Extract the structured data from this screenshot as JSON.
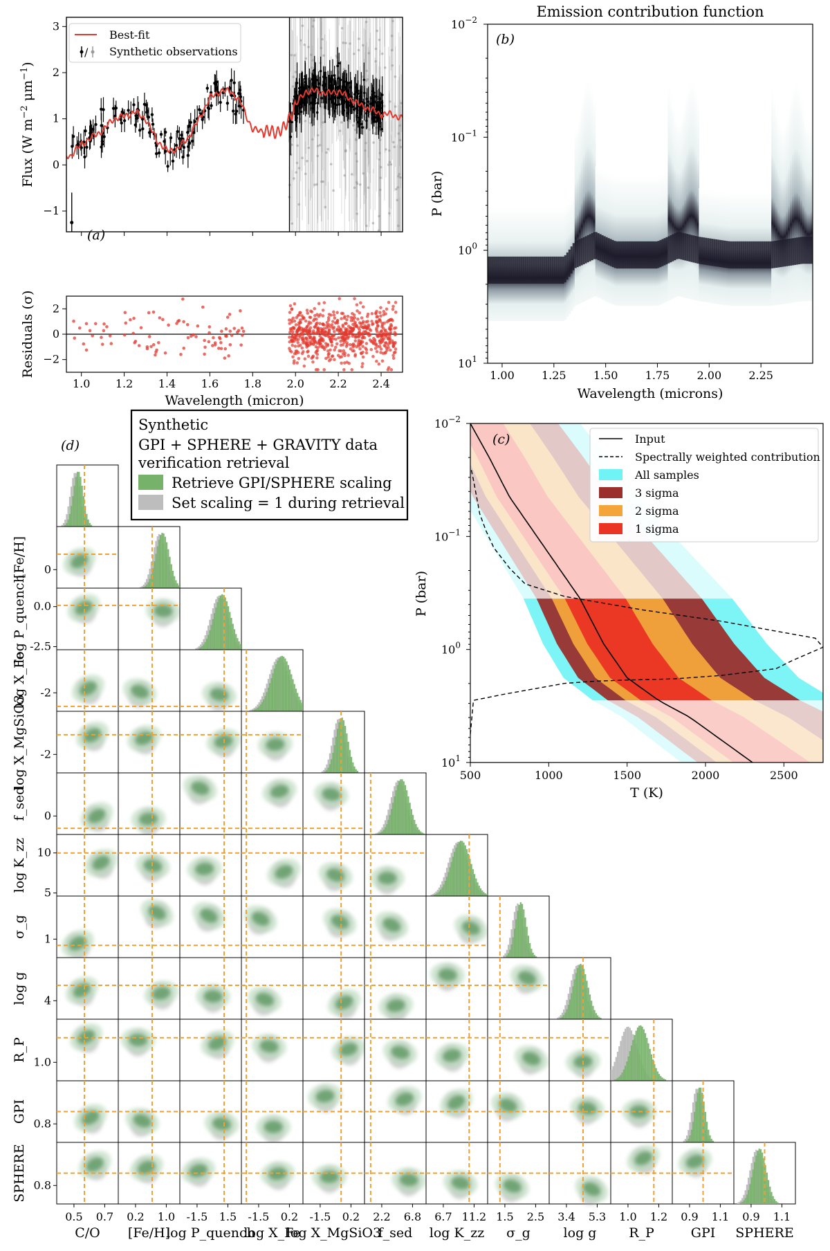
{
  "chart_data": [
    {
      "id": "a",
      "panel_label": "(a)",
      "type": "line+errorbar",
      "ylabel": "Flux (W m^-2 μm^-1)",
      "ylabel_parts": [
        "Flux (W m",
        "−2",
        " μm",
        "−1",
        ")"
      ],
      "xlim": [
        0.93,
        2.5
      ],
      "ylim": [
        -1.45,
        3.2
      ],
      "xticks": [
        1.0,
        1.2,
        1.4,
        1.6,
        1.8,
        2.0,
        2.2,
        2.4
      ],
      "xtick_labels": [
        "1.0",
        "1.2",
        "1.4",
        "1.6",
        "1.8",
        "2.0",
        "2.2",
        "2.4"
      ],
      "yticks": [
        -1,
        0,
        1,
        2,
        3
      ],
      "ytick_labels": [
        "−1",
        "0",
        "1",
        "2",
        "3"
      ],
      "legend": [
        "Best-fit",
        "Synthetic observations"
      ],
      "legend_marker_text": "/",
      "series": [
        {
          "name": "Best-fit",
          "color": "#e23a2f",
          "x": [
            0.95,
            1.0,
            1.05,
            1.1,
            1.15,
            1.2,
            1.25,
            1.3,
            1.35,
            1.4,
            1.45,
            1.5,
            1.55,
            1.6,
            1.65,
            1.7,
            1.75,
            1.8,
            1.85,
            1.9,
            1.95,
            2.0,
            2.05,
            2.1,
            2.15,
            2.2,
            2.25,
            2.3,
            2.35,
            2.4,
            2.45,
            2.5
          ],
          "y": [
            0.2,
            0.45,
            0.6,
            0.75,
            1.0,
            1.05,
            1.15,
            1.0,
            0.55,
            0.3,
            0.35,
            0.6,
            1.0,
            1.45,
            1.6,
            1.6,
            1.3,
            0.75,
            0.75,
            0.7,
            0.8,
            1.3,
            1.6,
            1.6,
            1.55,
            1.6,
            1.45,
            1.3,
            1.2,
            1.1,
            1.1,
            1.0
          ]
        }
      ]
    },
    {
      "id": "a-res",
      "type": "scatter",
      "ylabel": "Residuals (σ)",
      "xlabel": "Wavelength (micron)",
      "xlim": [
        0.93,
        2.5
      ],
      "ylim": [
        -3,
        3
      ],
      "xticks": [
        1.0,
        1.2,
        1.4,
        1.6,
        1.8,
        2.0,
        2.2,
        2.4
      ],
      "xtick_labels": [
        "1.0",
        "1.2",
        "1.4",
        "1.6",
        "1.8",
        "2.0",
        "2.2",
        "2.4"
      ],
      "yticks": [
        -2,
        0,
        2
      ],
      "ytick_labels": [
        "−2",
        "0",
        "2"
      ],
      "color": "#e23a2f"
    },
    {
      "id": "b",
      "panel_label": "(b)",
      "type": "heatmap",
      "title": "Emission contribution function",
      "xlabel": "Wavelength (microns)",
      "ylabel": "P (bar)",
      "xlim": [
        0.93,
        2.5
      ],
      "ylim_log10": [
        -2,
        1
      ],
      "xticks": [
        1.0,
        1.25,
        1.5,
        1.75,
        2.0,
        2.25
      ],
      "xtick_labels": [
        "1.00",
        "1.25",
        "1.50",
        "1.75",
        "2.00",
        "2.25"
      ],
      "ytick_base": "10",
      "yticks_exp": [
        "−2",
        "−1",
        "0",
        "1"
      ],
      "peak_pressure_bar": {
        "x": [
          0.93,
          1.0,
          1.3,
          1.35,
          1.45,
          1.55,
          1.75,
          1.85,
          1.95,
          2.1,
          2.2,
          2.3,
          2.45,
          2.5
        ],
        "y": [
          1.5,
          1.5,
          1.5,
          1.1,
          0.9,
          1.1,
          1.1,
          0.9,
          1.0,
          1.1,
          1.1,
          1.1,
          1.0,
          1.0
        ]
      }
    },
    {
      "id": "c",
      "panel_label": "(c)",
      "type": "area+line",
      "xlabel": "T (K)",
      "ylabel": "P (bar)",
      "xlim": [
        500,
        2750
      ],
      "ylim_log10": [
        -2,
        1
      ],
      "xticks": [
        500,
        1000,
        1500,
        2000,
        2500
      ],
      "xtick_labels": [
        "500",
        "1000",
        "1500",
        "2000",
        "2500"
      ],
      "ytick_base": "10",
      "yticks_exp": [
        "−2",
        "−1",
        "0",
        "1"
      ],
      "legend": [
        "Input",
        "Spectrally weighted contribution",
        "All samples",
        "3 sigma",
        "2 sigma",
        "1 sigma"
      ],
      "legend_colors": [
        "#000000",
        "#000000",
        "#6ff3f5",
        "#9a2f2c",
        "#f3a53a",
        "#ea3323"
      ],
      "input_profile": {
        "T": [
          500,
          620,
          750,
          900,
          1050,
          1200,
          1350,
          1500,
          1700,
          1900,
          2100,
          2300
        ],
        "log10P": [
          -2,
          -1.7,
          -1.35,
          -1.05,
          -0.75,
          -0.45,
          -0.05,
          0.25,
          0.45,
          0.6,
          0.8,
          1.0
        ]
      },
      "contribution_curve": {
        "T": [
          500,
          520,
          700,
          900,
          1100,
          1300,
          1500,
          1800,
          2100,
          2450,
          2550,
          2750,
          2700,
          2500,
          2100,
          1600,
          1100,
          850,
          750,
          650,
          600,
          560,
          540,
          520,
          505
        ],
        "log10P": [
          0.75,
          0.45,
          0.4,
          0.35,
          0.3,
          0.28,
          0.27,
          0.26,
          0.23,
          0.17,
          0.1,
          -0.02,
          -0.1,
          -0.15,
          -0.25,
          -0.35,
          -0.47,
          -0.58,
          -0.72,
          -0.9,
          -1.05,
          -1.2,
          -1.35,
          -1.5,
          -1.6
        ]
      }
    },
    {
      "id": "d",
      "panel_label": "(d)",
      "type": "corner",
      "legend_title": "Synthetic",
      "legend_subtitle_lines": [
        "GPI + SPHERE + GRAVITY data",
        "verification retrieval"
      ],
      "legend": [
        "Retrieve GPI/SPHERE scaling",
        "Set scaling = 1 during retrieval"
      ],
      "legend_colors": [
        "#77b26a",
        "#bdbdbd"
      ],
      "truth_color": "#f0a030",
      "parameters": [
        {
          "name": "C/O",
          "xticks": [
            "0.5",
            "0.7"
          ],
          "truth_frac": 0.45
        },
        {
          "name": "[Fe/H]",
          "xticks": [
            "0.2",
            "1.0"
          ],
          "truth_frac": 0.55,
          "yticks": [
            "0"
          ]
        },
        {
          "name": "log P_quench",
          "xticks": [
            "-1.5",
            "1.5"
          ],
          "truth_frac": 0.72,
          "yticks": [
            "0.0",
            "-2.5"
          ]
        },
        {
          "name": "log X_Fe",
          "xticks": [
            "-1.5",
            "0.2"
          ],
          "truth_frac": 0.08,
          "yticks": [
            "-2"
          ]
        },
        {
          "name": "log X_MgSiO3",
          "xticks": [
            "-1.5",
            "0.2"
          ],
          "truth_frac": 0.62,
          "yticks": [
            "-2"
          ]
        },
        {
          "name": "f_sed",
          "xticks": [
            "2.2",
            "6.8"
          ],
          "truth_frac": 0.1,
          "yticks": [
            "0"
          ]
        },
        {
          "name": "log K_zz",
          "xticks": [
            "6.7",
            "11.2"
          ],
          "truth_frac": 0.7,
          "yticks": [
            "10",
            "5"
          ]
        },
        {
          "name": "σ_g",
          "xticks": [
            "1.5",
            "2.5"
          ],
          "truth_frac": 0.2,
          "yticks": [
            "1"
          ]
        },
        {
          "name": "log g",
          "xticks": [
            "3.4",
            "5.3"
          ],
          "truth_frac": 0.55,
          "yticks": [
            "4"
          ]
        },
        {
          "name": "R_P",
          "xticks": [
            "1.0",
            "1.2"
          ],
          "truth_frac": 0.7,
          "yticks": [
            "1.0"
          ]
        },
        {
          "name": "GPI",
          "xticks": [
            "0.9",
            "1.1"
          ],
          "truth_frac": 0.5,
          "yticks": [
            "0.8"
          ]
        },
        {
          "name": "SPHERE",
          "xticks": [
            "0.9",
            "1.1"
          ],
          "truth_frac": 0.5,
          "yticks": [
            "0.8"
          ]
        }
      ]
    }
  ]
}
